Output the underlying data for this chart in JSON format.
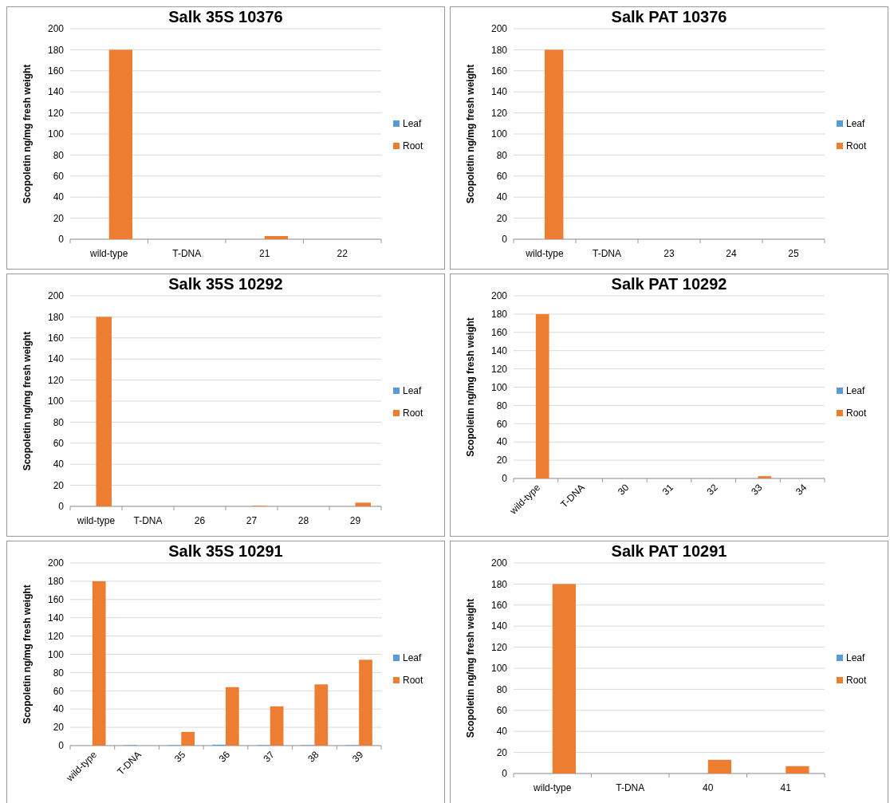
{
  "chart_data": [
    {
      "type": "bar",
      "title": "Salk 35S 10376",
      "ylabel": "Scopoletin ng/mg fresh weight",
      "categories": [
        "wild-type",
        "T-DNA",
        "21",
        "22"
      ],
      "ylim": [
        0,
        200
      ],
      "yticks": [
        0,
        20,
        40,
        60,
        80,
        100,
        120,
        140,
        160,
        180,
        200
      ],
      "grid": "y",
      "legend": "right",
      "series": [
        {
          "name": "Leaf",
          "color": "#5b9bd5",
          "values": [
            0,
            0,
            0,
            0
          ]
        },
        {
          "name": "Root",
          "color": "#ed7d31",
          "values": [
            180,
            0,
            3,
            0
          ]
        }
      ]
    },
    {
      "type": "bar",
      "title": "Salk PAT 10376",
      "ylabel": "Scopoletin ng/mg fresh weight",
      "categories": [
        "wild-type",
        "T-DNA",
        "23",
        "24",
        "25"
      ],
      "ylim": [
        0,
        200
      ],
      "yticks": [
        0,
        20,
        40,
        60,
        80,
        100,
        120,
        140,
        160,
        180,
        200
      ],
      "grid": "y",
      "legend": "right",
      "series": [
        {
          "name": "Leaf",
          "color": "#5b9bd5",
          "values": [
            0,
            0,
            0,
            0,
            0
          ]
        },
        {
          "name": "Root",
          "color": "#ed7d31",
          "values": [
            180,
            0,
            0,
            0,
            0
          ]
        }
      ]
    },
    {
      "type": "bar",
      "title": "Salk 35S 10292",
      "ylabel": "Scopoletin ng/mg fresh weight",
      "categories": [
        "wild-type",
        "T-DNA",
        "26",
        "27",
        "28",
        "29"
      ],
      "ylim": [
        0,
        200
      ],
      "yticks": [
        0,
        20,
        40,
        60,
        80,
        100,
        120,
        140,
        160,
        180,
        200
      ],
      "grid": "y",
      "legend": "right",
      "series": [
        {
          "name": "Leaf",
          "color": "#5b9bd5",
          "values": [
            0,
            0,
            0,
            0,
            0,
            0
          ]
        },
        {
          "name": "Root",
          "color": "#ed7d31",
          "values": [
            180,
            0,
            0,
            0.5,
            0,
            3.5
          ]
        }
      ]
    },
    {
      "type": "bar",
      "title": "Salk PAT 10292",
      "ylabel": "Scopoletin ng/mg fresh weight",
      "categories": [
        "wild-type",
        "T-DNA",
        "30",
        "31",
        "32",
        "33",
        "34"
      ],
      "ylim": [
        0,
        200
      ],
      "yticks": [
        0,
        20,
        40,
        60,
        80,
        100,
        120,
        140,
        160,
        180,
        200
      ],
      "grid": "y",
      "legend": "right",
      "series": [
        {
          "name": "Leaf",
          "color": "#5b9bd5",
          "values": [
            0,
            0,
            0,
            0,
            0,
            0,
            0
          ]
        },
        {
          "name": "Root",
          "color": "#ed7d31",
          "values": [
            180,
            0,
            0,
            0,
            0,
            2.5,
            0
          ]
        }
      ]
    },
    {
      "type": "bar",
      "title": "Salk 35S 10291",
      "ylabel": "Scopoletin ng/mg fresh weight",
      "categories": [
        "wild-type",
        "T-DNA",
        "35",
        "36",
        "37",
        "38",
        "39"
      ],
      "ylim": [
        0,
        200
      ],
      "yticks": [
        0,
        20,
        40,
        60,
        80,
        100,
        120,
        140,
        160,
        180,
        200
      ],
      "grid": "y",
      "legend": "right",
      "series": [
        {
          "name": "Leaf",
          "color": "#5b9bd5",
          "values": [
            0,
            0.5,
            0.5,
            1,
            0.5,
            0.5,
            0.5
          ]
        },
        {
          "name": "Root",
          "color": "#ed7d31",
          "values": [
            180,
            0,
            15,
            64,
            43,
            67,
            94
          ]
        }
      ]
    },
    {
      "type": "bar",
      "title": "Salk PAT 10291",
      "ylabel": "Scopoletin ng/mg fresh weight",
      "categories": [
        "wild-type",
        "T-DNA",
        "40",
        "41"
      ],
      "ylim": [
        0,
        200
      ],
      "yticks": [
        0,
        20,
        40,
        60,
        80,
        100,
        120,
        140,
        160,
        180,
        200
      ],
      "grid": "y",
      "legend": "right",
      "series": [
        {
          "name": "Leaf",
          "color": "#5b9bd5",
          "values": [
            0,
            0,
            0,
            0
          ]
        },
        {
          "name": "Root",
          "color": "#ed7d31",
          "values": [
            180,
            0,
            13,
            7
          ]
        }
      ]
    }
  ]
}
